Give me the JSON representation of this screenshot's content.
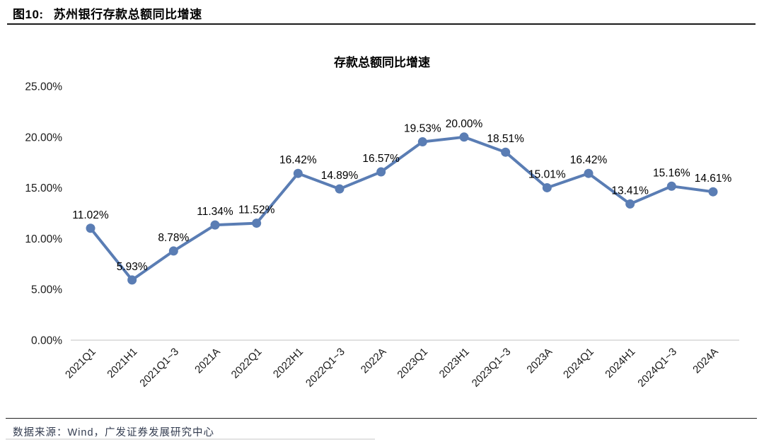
{
  "header": {
    "figure_label": "图10:",
    "figure_title": "苏州银行存款总额同比增速"
  },
  "chart_data": {
    "type": "line",
    "title": "存款总额同比增速",
    "series_name": "存款总额同比增速",
    "categories": [
      "2021Q1",
      "2021H1",
      "2021Q1~3",
      "2021A",
      "2022Q1",
      "2022H1",
      "2022Q1~3",
      "2022A",
      "2023Q1",
      "2023H1",
      "2023Q1~3",
      "2023A",
      "2024Q1",
      "2024H1",
      "2024Q1~3",
      "2024A"
    ],
    "values": [
      11.02,
      5.93,
      8.78,
      11.34,
      11.52,
      16.42,
      14.89,
      16.57,
      19.53,
      20.0,
      18.51,
      15.01,
      16.42,
      13.41,
      15.16,
      14.61
    ],
    "point_labels": [
      "11.02%",
      "5.93%",
      "8.78%",
      "11.34%",
      "11.52%",
      "16.42%",
      "14.89%",
      "16.57%",
      "19.53%",
      "20.00%",
      "18.51%",
      "15.01%",
      "16.42%",
      "13.41%",
      "15.16%",
      "14.61%"
    ],
    "xlabel": "",
    "ylabel": "",
    "ylim": [
      0,
      25
    ],
    "yticks": [
      {
        "value": 0,
        "label": "0.00%"
      },
      {
        "value": 5,
        "label": "5.00%"
      },
      {
        "value": 10,
        "label": "10.00%"
      },
      {
        "value": 15,
        "label": "15.00%"
      },
      {
        "value": 20,
        "label": "20.00%"
      },
      {
        "value": 25,
        "label": "25.00%"
      }
    ],
    "grid": "baseline-only",
    "legend": "none",
    "line_color": "#5A7DB4",
    "baseline_color": "#D6D6D6",
    "label_color": "#000000"
  },
  "footer": {
    "source": "数据来源：Wind，广发证券发展研究中心"
  }
}
